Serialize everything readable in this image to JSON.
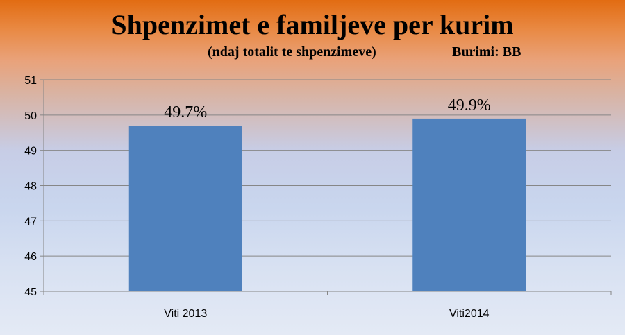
{
  "header": {
    "title": "Shpenzimet e familjeve per kurim",
    "subtitle": "(ndaj totalit te shpenzimeve)",
    "source": "Burimi: BB"
  },
  "colors": {
    "bar": "#4f81bd",
    "grid": "#868686",
    "axis": "#868686"
  },
  "chart_data": {
    "type": "bar",
    "title": "Shpenzimet e familjeve per kurim",
    "subtitle": "(ndaj totalit te shpenzimeve)",
    "categories": [
      "Viti 2013",
      "Viti2014"
    ],
    "values": [
      49.7,
      49.9
    ],
    "data_labels": [
      "49.7%",
      "49.9%"
    ],
    "ylim": [
      45,
      51
    ],
    "yticks": [
      45,
      46,
      47,
      48,
      49,
      50,
      51
    ],
    "grid": true,
    "legend": "none",
    "xlabel": "",
    "ylabel": ""
  }
}
